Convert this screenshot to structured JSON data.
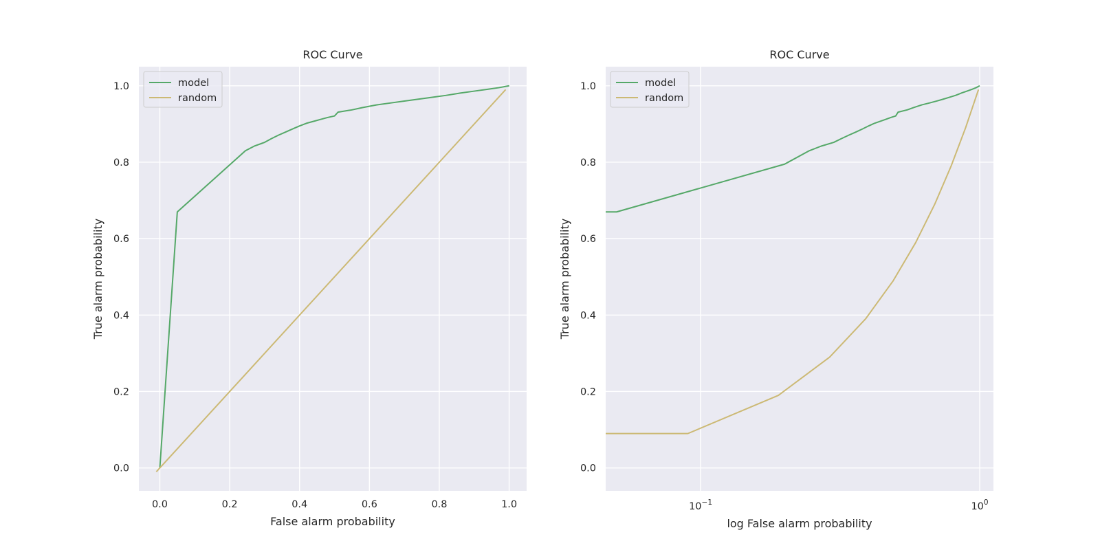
{
  "chart_data": [
    {
      "type": "line",
      "title": "ROC Curve",
      "xlabel": "False alarm probability",
      "ylabel": "True alarm probability",
      "xscale": "linear",
      "xlim": [
        -0.06,
        1.05
      ],
      "ylim": [
        -0.06,
        1.05
      ],
      "xticks": [
        0.0,
        0.2,
        0.4,
        0.6,
        0.8,
        1.0
      ],
      "xtick_labels": [
        "0.0",
        "0.2",
        "0.4",
        "0.6",
        "0.8",
        "1.0"
      ],
      "yticks": [
        0.0,
        0.2,
        0.4,
        0.6,
        0.8,
        1.0
      ],
      "ytick_labels": [
        "0.0",
        "0.2",
        "0.4",
        "0.6",
        "0.8",
        "1.0"
      ],
      "grid": true,
      "legend_position": "upper-left",
      "series": [
        {
          "name": "model",
          "color": "#55a868",
          "x": [
            0.0,
            0.05,
            0.245,
            0.27,
            0.3,
            0.32,
            0.34,
            0.36,
            0.38,
            0.4,
            0.42,
            0.44,
            0.46,
            0.48,
            0.5,
            0.51,
            0.55,
            0.58,
            0.62,
            0.66,
            0.7,
            0.74,
            0.78,
            0.82,
            0.86,
            0.9,
            0.94,
            0.97,
            1.0
          ],
          "y": [
            0.0,
            0.67,
            0.83,
            0.842,
            0.852,
            0.862,
            0.871,
            0.879,
            0.887,
            0.895,
            0.902,
            0.907,
            0.912,
            0.917,
            0.921,
            0.931,
            0.937,
            0.943,
            0.95,
            0.955,
            0.96,
            0.965,
            0.97,
            0.975,
            0.981,
            0.986,
            0.991,
            0.995,
            1.0
          ]
        },
        {
          "name": "random",
          "color": "#ccb974",
          "x": [
            -0.01,
            0.99
          ],
          "y": [
            -0.01,
            0.99
          ]
        }
      ]
    },
    {
      "type": "line",
      "title": "ROC Curve",
      "xlabel": "log False alarm probability",
      "ylabel": "True alarm probability",
      "xscale": "log",
      "xlim": [
        0.0457,
        1.12
      ],
      "ylim": [
        -0.06,
        1.05
      ],
      "xticks": [
        0.1,
        1.0
      ],
      "xtick_labels": [
        {
          "base": "10",
          "exp": "−1"
        },
        {
          "base": "10",
          "exp": "0"
        }
      ],
      "yticks": [
        0.0,
        0.2,
        0.4,
        0.6,
        0.8,
        1.0
      ],
      "ytick_labels": [
        "0.0",
        "0.2",
        "0.4",
        "0.6",
        "0.8",
        "1.0"
      ],
      "grid": true,
      "legend_position": "upper-left",
      "series": [
        {
          "name": "model",
          "color": "#55a868",
          "x": [
            0.0457,
            0.05,
            0.2,
            0.245,
            0.27,
            0.3,
            0.32,
            0.34,
            0.36,
            0.38,
            0.4,
            0.42,
            0.44,
            0.46,
            0.48,
            0.5,
            0.51,
            0.55,
            0.58,
            0.62,
            0.66,
            0.7,
            0.74,
            0.78,
            0.82,
            0.86,
            0.9,
            0.94,
            0.97,
            1.0
          ],
          "y": [
            0.67,
            0.67,
            0.795,
            0.83,
            0.842,
            0.852,
            0.862,
            0.871,
            0.879,
            0.887,
            0.895,
            0.902,
            0.907,
            0.912,
            0.917,
            0.921,
            0.931,
            0.937,
            0.943,
            0.95,
            0.955,
            0.96,
            0.965,
            0.97,
            0.975,
            0.981,
            0.986,
            0.991,
            0.995,
            1.0
          ]
        },
        {
          "name": "random",
          "color": "#ccb974",
          "x": [
            0.0457,
            0.09,
            0.19,
            0.29,
            0.39,
            0.49,
            0.59,
            0.69,
            0.79,
            0.89,
            0.99
          ],
          "y": [
            0.09,
            0.09,
            0.19,
            0.29,
            0.39,
            0.49,
            0.59,
            0.69,
            0.79,
            0.89,
            0.99
          ]
        }
      ]
    }
  ]
}
